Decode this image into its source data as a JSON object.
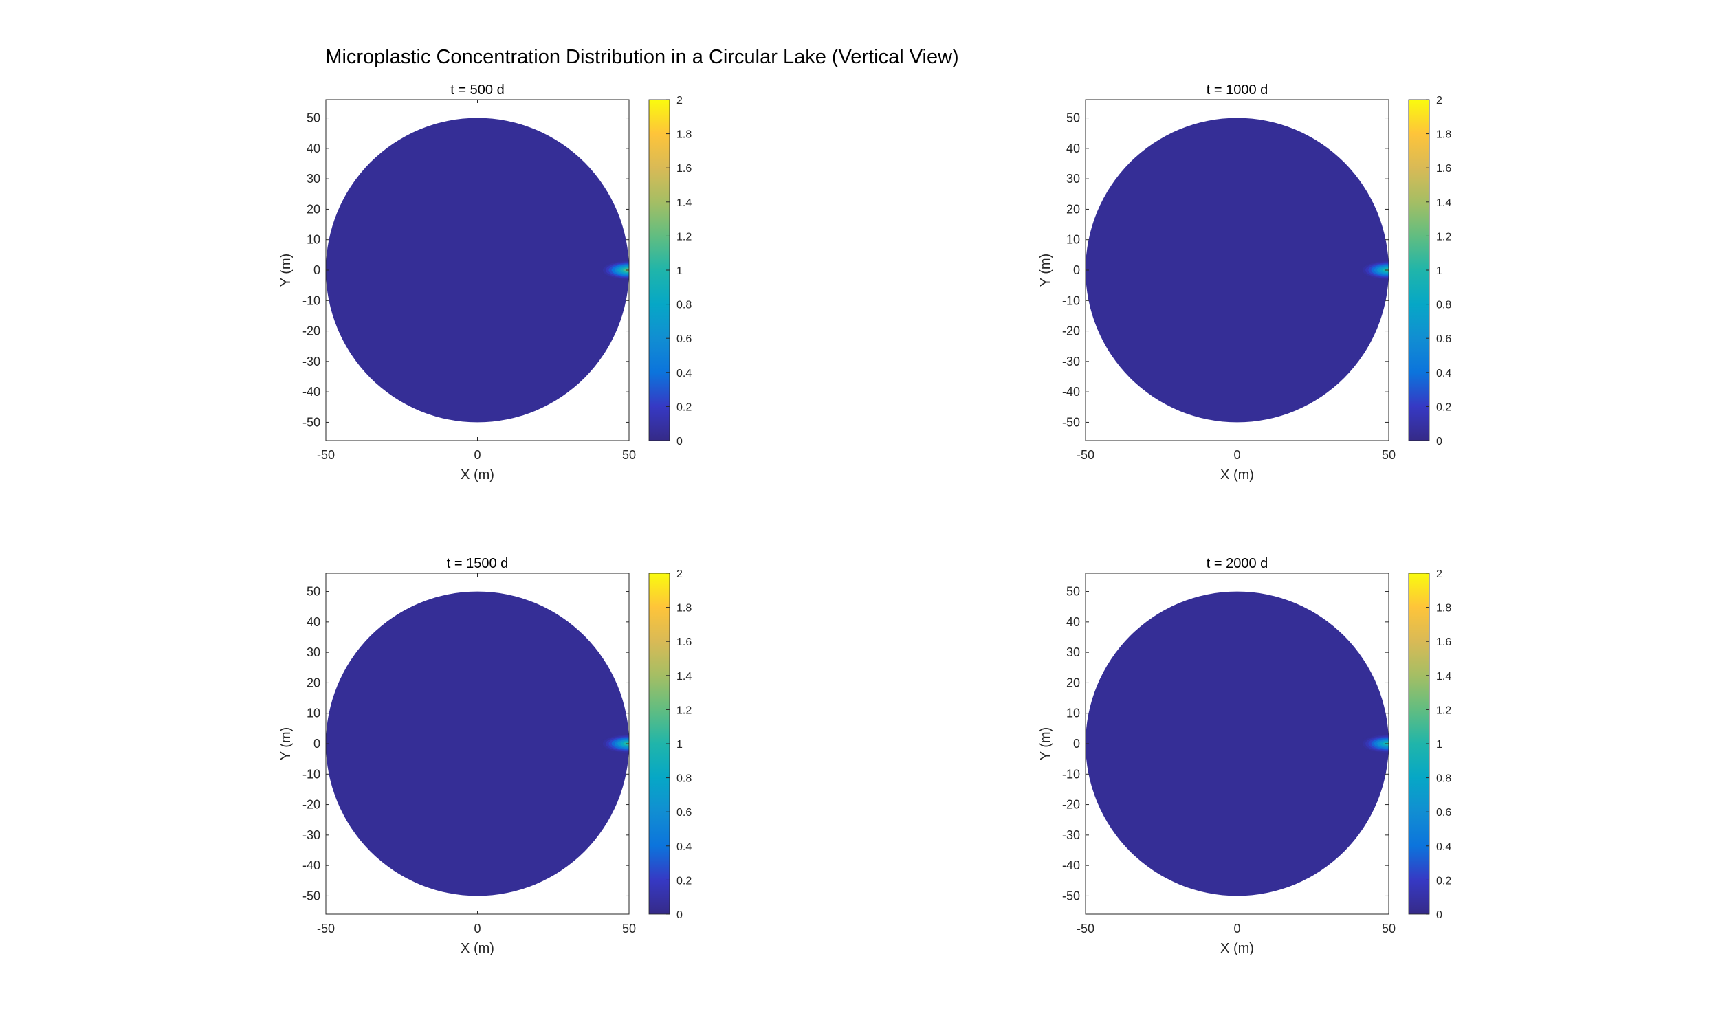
{
  "figure": {
    "title": "Microplastic Concentration Distribution in a Circular Lake (Vertical View)"
  },
  "chart_data": [
    {
      "type": "heatmap",
      "title": "t = 500 d",
      "xlabel": "X (m)",
      "ylabel": "Y (m)",
      "xlim": [
        -50,
        50
      ],
      "ylim": [
        -56,
        56
      ],
      "xticks": [
        -50,
        0,
        50
      ],
      "yticks": [
        -50,
        -40,
        -30,
        -20,
        -10,
        0,
        10,
        20,
        30,
        40,
        50
      ],
      "lake_radius": 50,
      "background_value": 0.05,
      "source": {
        "x": 50,
        "y": 0,
        "peak_value": 1.6,
        "spread_m": 6
      },
      "colorbar": {
        "min": 0,
        "max": 2,
        "ticks": [
          0,
          0.2,
          0.4,
          0.6,
          0.8,
          1,
          1.2,
          1.4,
          1.6,
          1.8,
          2
        ],
        "colormap": "parula"
      }
    },
    {
      "type": "heatmap",
      "title": "t = 1000 d",
      "xlabel": "X (m)",
      "ylabel": "Y (m)",
      "xlim": [
        -50,
        50
      ],
      "ylim": [
        -56,
        56
      ],
      "xticks": [
        -50,
        0,
        50
      ],
      "yticks": [
        -50,
        -40,
        -30,
        -20,
        -10,
        0,
        10,
        20,
        30,
        40,
        50
      ],
      "lake_radius": 50,
      "background_value": 0.05,
      "source": {
        "x": 50,
        "y": 0,
        "peak_value": 1.4,
        "spread_m": 6
      },
      "colorbar": {
        "min": 0,
        "max": 2,
        "ticks": [
          0,
          0.2,
          0.4,
          0.6,
          0.8,
          1,
          1.2,
          1.4,
          1.6,
          1.8,
          2
        ],
        "colormap": "parula"
      }
    },
    {
      "type": "heatmap",
      "title": "t = 1500 d",
      "xlabel": "X (m)",
      "ylabel": "Y (m)",
      "xlim": [
        -50,
        50
      ],
      "ylim": [
        -56,
        56
      ],
      "xticks": [
        -50,
        0,
        50
      ],
      "yticks": [
        -50,
        -40,
        -30,
        -20,
        -10,
        0,
        10,
        20,
        30,
        40,
        50
      ],
      "lake_radius": 50,
      "background_value": 0.05,
      "source": {
        "x": 50,
        "y": 0,
        "peak_value": 1.4,
        "spread_m": 6
      },
      "colorbar": {
        "min": 0,
        "max": 2,
        "ticks": [
          0,
          0.2,
          0.4,
          0.6,
          0.8,
          1,
          1.2,
          1.4,
          1.6,
          1.8,
          2
        ],
        "colormap": "parula"
      }
    },
    {
      "type": "heatmap",
      "title": "t = 2000 d",
      "xlabel": "X (m)",
      "ylabel": "Y (m)",
      "xlim": [
        -50,
        50
      ],
      "ylim": [
        -56,
        56
      ],
      "xticks": [
        -50,
        0,
        50
      ],
      "yticks": [
        -50,
        -40,
        -30,
        -20,
        -10,
        0,
        10,
        20,
        30,
        40,
        50
      ],
      "lake_radius": 50,
      "background_value": 0.05,
      "source": {
        "x": 50,
        "y": 0,
        "peak_value": 1.3,
        "spread_m": 6
      },
      "colorbar": {
        "min": 0,
        "max": 2,
        "ticks": [
          0,
          0.2,
          0.4,
          0.6,
          0.8,
          1,
          1.2,
          1.4,
          1.6,
          1.8,
          2
        ],
        "colormap": "parula"
      }
    }
  ]
}
